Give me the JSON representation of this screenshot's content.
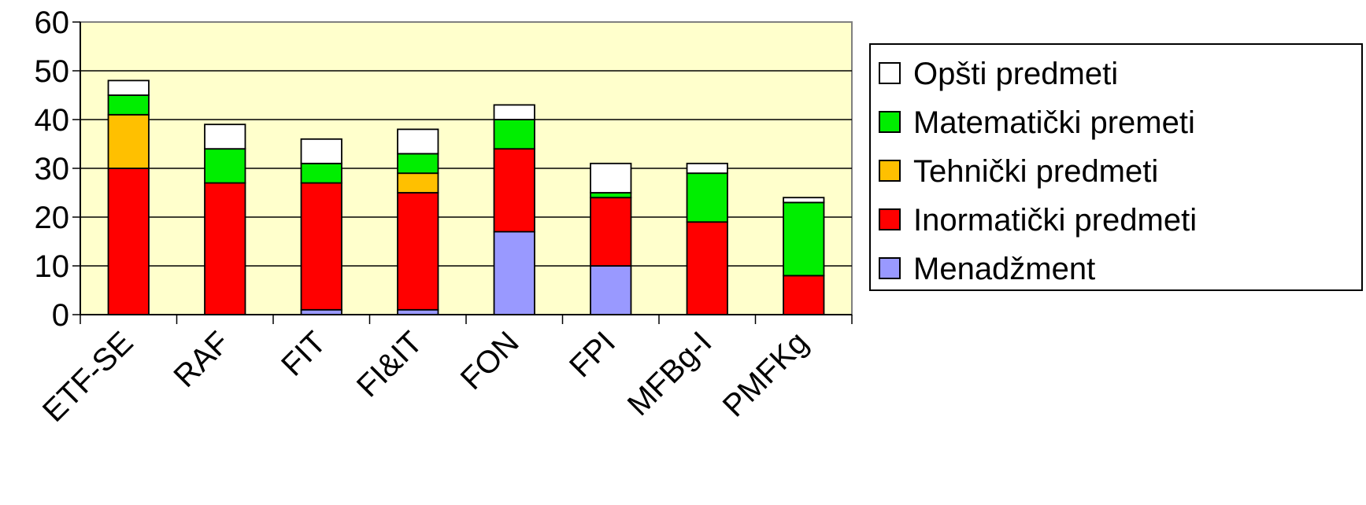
{
  "chart_data": {
    "type": "bar",
    "stacked": true,
    "categories": [
      "ETF-SE",
      "RAF",
      "FIT",
      "FI&IT",
      "FON",
      "FPI",
      "MFBg-I",
      "PMFKg"
    ],
    "series": [
      {
        "name": "Menadžment",
        "color": "#9999FF",
        "values": [
          0,
          0,
          1,
          1,
          17,
          10,
          0,
          0
        ]
      },
      {
        "name": "Inormatički predmeti",
        "color": "#FF0000",
        "values": [
          30,
          27,
          26,
          24,
          17,
          14,
          19,
          8
        ]
      },
      {
        "name": "Tehnički predmeti",
        "color": "#FFC000",
        "values": [
          11,
          0,
          0,
          4,
          0,
          0,
          0,
          0
        ]
      },
      {
        "name": "Matematički premeti",
        "color": "#00EE00",
        "values": [
          4,
          7,
          4,
          4,
          6,
          1,
          10,
          15
        ]
      },
      {
        "name": "Opšti predmeti",
        "color": "#FFFFFF",
        "values": [
          3,
          5,
          5,
          5,
          3,
          6,
          2,
          1
        ]
      }
    ],
    "legend_order": [
      "Opšti predmeti",
      "Matematički premeti",
      "Tehnički predmeti",
      "Inormatički predmeti",
      "Menadžment"
    ],
    "yticks": [
      "0",
      "10",
      "20",
      "30",
      "40",
      "50",
      "60"
    ],
    "ylim": [
      0,
      60
    ],
    "grid": true,
    "legend_position": "right",
    "plot_background": "#FFFFCC"
  }
}
